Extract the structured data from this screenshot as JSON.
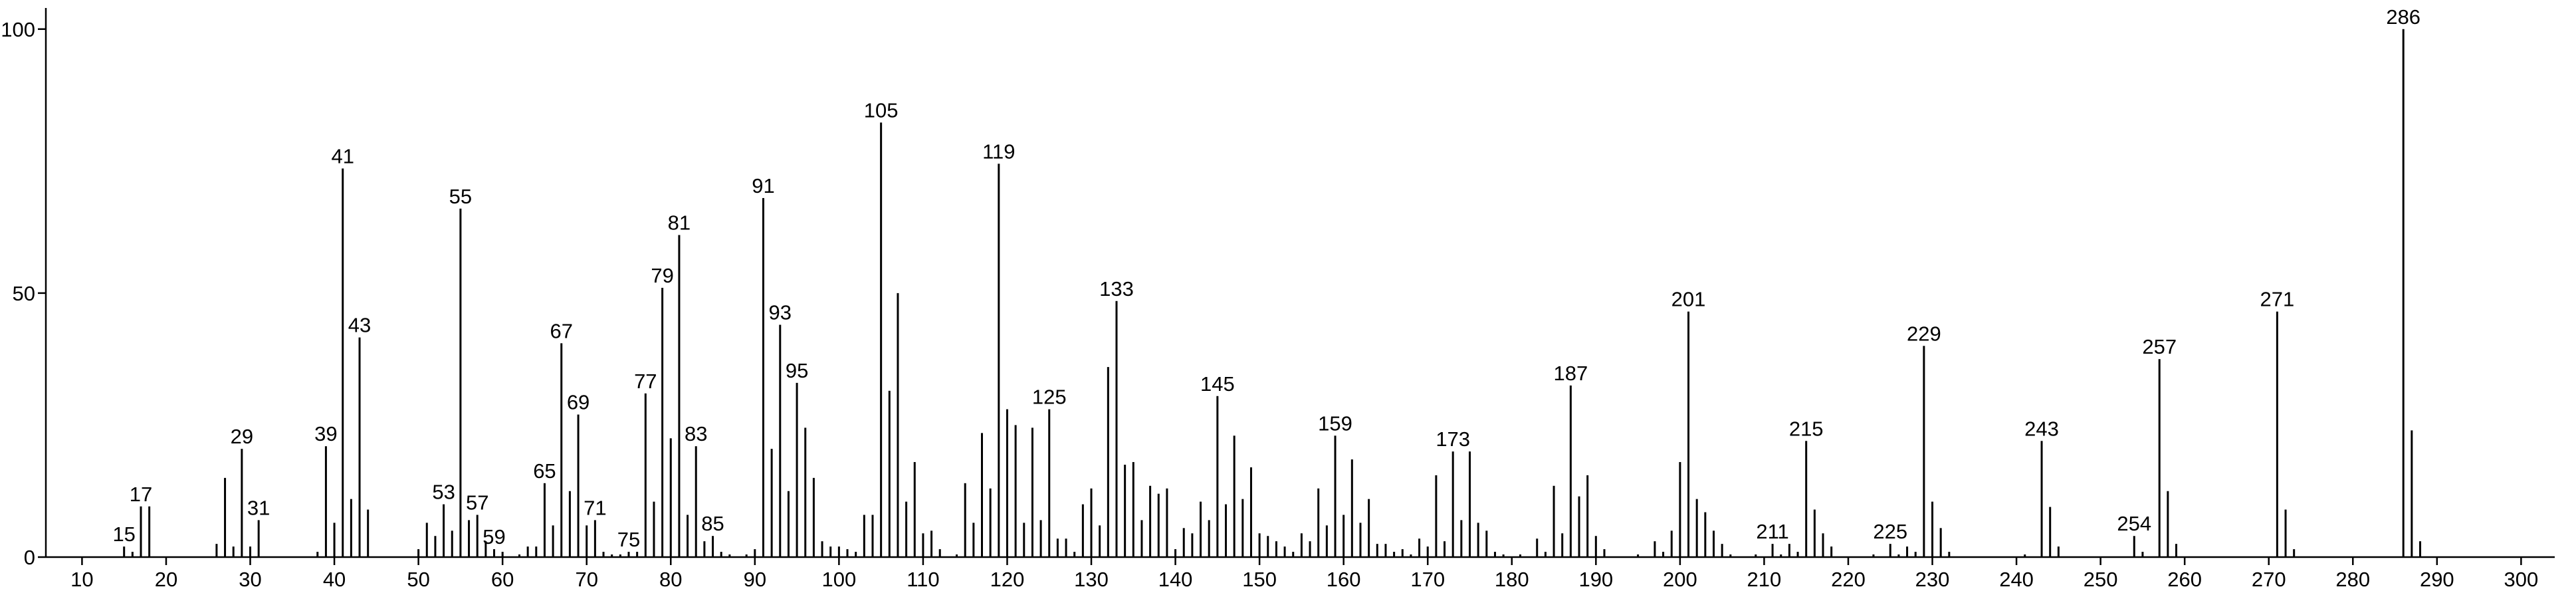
{
  "chart_data": {
    "type": "stem",
    "color": "#000000",
    "xlim": [
      5.7,
      304
    ],
    "ylim": [
      0,
      104
    ],
    "xticks": [
      10,
      20,
      30,
      40,
      50,
      60,
      70,
      80,
      90,
      100,
      110,
      120,
      130,
      140,
      150,
      160,
      170,
      180,
      190,
      200,
      210,
      220,
      230,
      240,
      250,
      260,
      270,
      280,
      290,
      300
    ],
    "yticks": [
      0,
      50,
      100
    ],
    "x": [
      15,
      16,
      17,
      18,
      26,
      27,
      28,
      29,
      30,
      31,
      38,
      39,
      40,
      41,
      42,
      43,
      44,
      50,
      51,
      52,
      53,
      54,
      55,
      56,
      57,
      58,
      59,
      60,
      62,
      63,
      64,
      65,
      66,
      67,
      68,
      69,
      70,
      71,
      72,
      73,
      74,
      75,
      76,
      77,
      78,
      79,
      80,
      81,
      82,
      83,
      84,
      85,
      86,
      87,
      89,
      90,
      91,
      92,
      93,
      94,
      95,
      96,
      97,
      98,
      99,
      100,
      101,
      102,
      103,
      104,
      105,
      106,
      107,
      108,
      109,
      110,
      111,
      112,
      114,
      115,
      116,
      117,
      118,
      119,
      120,
      121,
      122,
      123,
      124,
      125,
      126,
      127,
      128,
      129,
      130,
      131,
      132,
      133,
      134,
      135,
      136,
      137,
      138,
      139,
      140,
      141,
      142,
      143,
      144,
      145,
      146,
      147,
      148,
      149,
      150,
      151,
      152,
      153,
      154,
      155,
      156,
      157,
      158,
      159,
      160,
      161,
      162,
      163,
      164,
      165,
      166,
      167,
      168,
      169,
      170,
      171,
      172,
      173,
      174,
      175,
      176,
      177,
      178,
      179,
      181,
      183,
      184,
      185,
      186,
      187,
      188,
      189,
      190,
      191,
      195,
      197,
      198,
      199,
      200,
      201,
      202,
      203,
      204,
      205,
      206,
      209,
      211,
      212,
      213,
      214,
      215,
      216,
      217,
      218,
      223,
      225,
      226,
      227,
      228,
      229,
      230,
      231,
      232,
      241,
      243,
      244,
      245,
      254,
      255,
      257,
      258,
      259,
      271,
      272,
      273,
      286,
      287,
      288
    ],
    "values": [
      2,
      1,
      9.6,
      9.6,
      2.5,
      15,
      2,
      20.5,
      2,
      7,
      1,
      21,
      6.5,
      73.6,
      11,
      41.6,
      9,
      1.5,
      6.5,
      4,
      10,
      5,
      66,
      7,
      8,
      3,
      1.5,
      1,
      0.5,
      2,
      2,
      14,
      6,
      40.5,
      12.5,
      27,
      6,
      7,
      1,
      0.5,
      0.5,
      1,
      1,
      31,
      10.5,
      51,
      22.5,
      61,
      8,
      21,
      3,
      4,
      1,
      0.5,
      0.5,
      1.5,
      68,
      20.5,
      44,
      12.5,
      33,
      24.5,
      15,
      3,
      2,
      2,
      1.5,
      1,
      8,
      8,
      82.3,
      31.5,
      50,
      10.5,
      18,
      4.5,
      5,
      1.5,
      0.5,
      14,
      6.5,
      23.5,
      13,
      74.5,
      28,
      25,
      6.5,
      24.5,
      7,
      28,
      3.5,
      3.5,
      1,
      10,
      13,
      6,
      36,
      48.5,
      17.5,
      18,
      7,
      13.5,
      12,
      13,
      1.5,
      5.5,
      4.5,
      10.5,
      7,
      30.5,
      10,
      23,
      11,
      17,
      4.5,
      4,
      3,
      2,
      1,
      4.5,
      3,
      13,
      6,
      23,
      8,
      18.5,
      6.5,
      11,
      2.5,
      2.5,
      1,
      1.5,
      0.5,
      3.5,
      2,
      15.5,
      3,
      20,
      7,
      20,
      6.5,
      5,
      1,
      0.5,
      0.5,
      3.5,
      1,
      13.5,
      4.5,
      32.5,
      11.5,
      15.5,
      4,
      1.5,
      0.5,
      3,
      1,
      5,
      18,
      46.5,
      11,
      8.5,
      5,
      2.5,
      0.5,
      0.5,
      2.5,
      0.5,
      2.5,
      1,
      22,
      9,
      4.5,
      2,
      0.5,
      2.5,
      0.5,
      2,
      1,
      40,
      10.5,
      5.5,
      1,
      0.5,
      22,
      9.5,
      2,
      4,
      1,
      37.5,
      12.5,
      2.5,
      46.5,
      9,
      1.5,
      100,
      24,
      3
    ],
    "show_label": [
      true,
      false,
      true,
      false,
      false,
      false,
      false,
      true,
      false,
      true,
      false,
      true,
      false,
      true,
      false,
      true,
      false,
      false,
      false,
      false,
      true,
      false,
      true,
      false,
      true,
      false,
      true,
      false,
      false,
      false,
      false,
      true,
      false,
      true,
      false,
      true,
      false,
      true,
      false,
      false,
      false,
      true,
      false,
      true,
      false,
      true,
      false,
      true,
      false,
      true,
      false,
      true,
      false,
      false,
      false,
      false,
      true,
      false,
      true,
      false,
      true,
      false,
      false,
      false,
      false,
      false,
      false,
      false,
      false,
      false,
      true,
      false,
      false,
      false,
      false,
      false,
      false,
      false,
      false,
      false,
      false,
      false,
      false,
      true,
      false,
      false,
      false,
      false,
      false,
      true,
      false,
      false,
      false,
      false,
      false,
      false,
      false,
      true,
      false,
      false,
      false,
      false,
      false,
      false,
      false,
      false,
      false,
      false,
      false,
      true,
      false,
      false,
      false,
      false,
      false,
      false,
      false,
      false,
      false,
      false,
      false,
      false,
      false,
      true,
      false,
      false,
      false,
      false,
      false,
      false,
      false,
      false,
      false,
      false,
      false,
      false,
      false,
      true,
      false,
      false,
      false,
      false,
      false,
      false,
      false,
      false,
      false,
      false,
      false,
      true,
      false,
      false,
      false,
      false,
      false,
      false,
      false,
      false,
      false,
      true,
      false,
      false,
      false,
      false,
      false,
      false,
      true,
      false,
      false,
      false,
      true,
      false,
      false,
      false,
      false,
      true,
      false,
      false,
      false,
      true,
      false,
      false,
      false,
      false,
      true,
      false,
      false,
      true,
      false,
      true,
      false,
      false,
      true,
      false,
      false,
      true,
      false,
      false
    ]
  }
}
